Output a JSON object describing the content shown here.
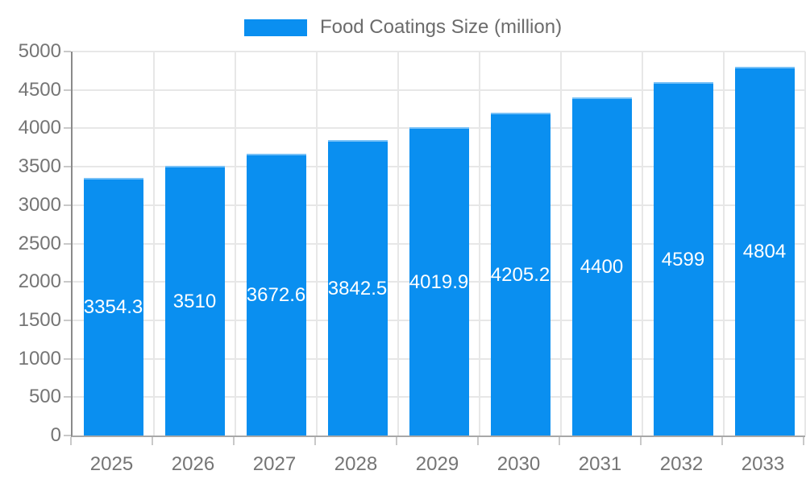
{
  "chart": {
    "colors": {
      "bar": "#0a8ff0",
      "bar_top_edge": "rgba(255,255,255,0.45)",
      "grid": "#e7e7e7",
      "y_axis_line": "#8a8a8a",
      "baseline": "#a8a8a8",
      "tick_mark": "#c9c9c9",
      "tick_label_text": "#757575",
      "legend_text": "#6b6b6b",
      "value_label_text": "#ffffff",
      "background": "#ffffff"
    }
  },
  "chart_data": {
    "type": "bar",
    "title": "Food Coatings Size (million)",
    "series_name": "Food Coatings Size (million)",
    "categories": [
      "2025",
      "2026",
      "2027",
      "2028",
      "2029",
      "2030",
      "2031",
      "2032",
      "2033"
    ],
    "values": [
      3354.3,
      3510,
      3672.6,
      3842.5,
      4019.9,
      4205.2,
      4400,
      4599,
      4804
    ],
    "value_labels": [
      "3354.3",
      "3510",
      "3672.6",
      "3842.5",
      "4019.9",
      "4205.2",
      "4400",
      "4599",
      "4804"
    ],
    "xlabel": "",
    "ylabel": "",
    "ylim": [
      0,
      5000
    ],
    "ytick_step": 500,
    "yticks": [
      0,
      500,
      1000,
      1500,
      2000,
      2500,
      3000,
      3500,
      4000,
      4500,
      5000
    ],
    "grid": true,
    "legend_position": "top",
    "value_label_placement": "centered-inside-bar"
  }
}
